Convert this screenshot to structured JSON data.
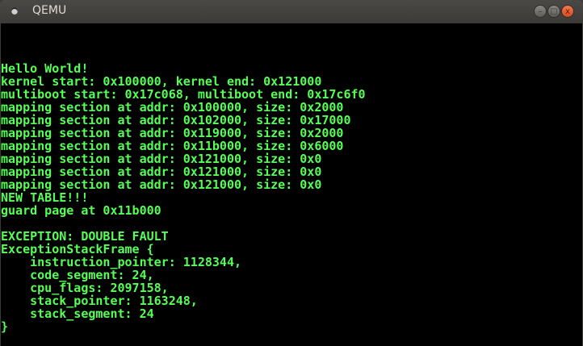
{
  "window": {
    "title": "QEMU",
    "minimize": "–",
    "maximize": "□",
    "close": "x"
  },
  "console": {
    "text_color": "#55ff55",
    "lines": [
      "",
      "",
      "",
      "Hello World!",
      "kernel start: 0x100000, kernel end: 0x121000",
      "multiboot start: 0x17c068, multiboot end: 0x17c6f0",
      "mapping section at addr: 0x100000, size: 0x2000",
      "mapping section at addr: 0x102000, size: 0x17000",
      "mapping section at addr: 0x119000, size: 0x2000",
      "mapping section at addr: 0x11b000, size: 0x6000",
      "mapping section at addr: 0x121000, size: 0x0",
      "mapping section at addr: 0x121000, size: 0x0",
      "mapping section at addr: 0x121000, size: 0x0",
      "NEW TABLE!!!",
      "guard page at 0x11b000",
      "",
      "EXCEPTION: DOUBLE FAULT",
      "ExceptionStackFrame {",
      "    instruction_pointer: 1128344,",
      "    code_segment: 24,",
      "    cpu_flags: 2097158,",
      "    stack_pointer: 1163248,",
      "    stack_segment: 24",
      "}"
    ]
  }
}
